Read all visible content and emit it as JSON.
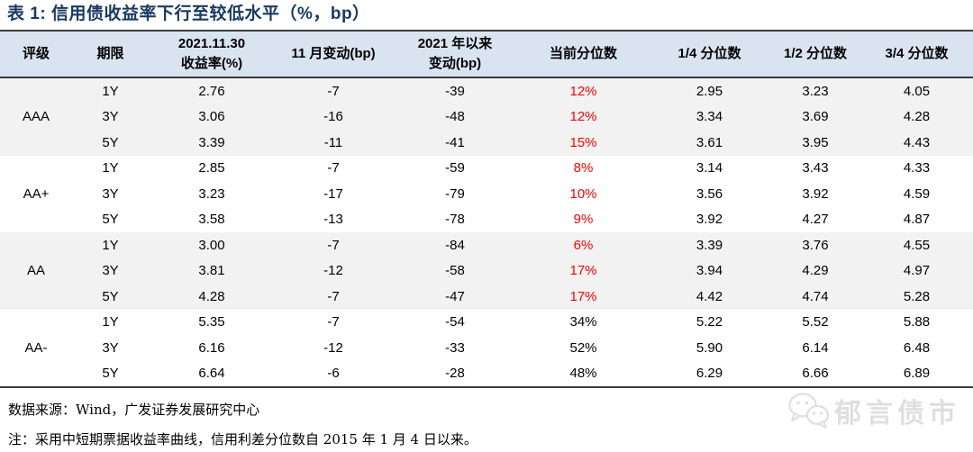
{
  "page": {
    "title": "表 1: 信用债收益率下行至较低水平（%，bp）"
  },
  "colors": {
    "title_navy": "#1A3A63",
    "header_bg": "#DAE3F0",
    "shaded_row_bg": "#F2F2F2",
    "percentile_red": "#FF0000",
    "rule_dark": "#3B3B3B",
    "watermark_gray": "#DFDFDF"
  },
  "table": {
    "columns": [
      {
        "label": "评级"
      },
      {
        "label": "期限"
      },
      {
        "label": "2021.11.30\n收益率(%)"
      },
      {
        "label": "11 月变动(bp)"
      },
      {
        "label": "2021 年以来\n变动(bp)"
      },
      {
        "label": "当前分位数"
      },
      {
        "label": "1/4 分位数"
      },
      {
        "label": "1/2 分位数"
      },
      {
        "label": "3/4 分位数"
      }
    ],
    "groups": [
      {
        "rating": "AAA",
        "shaded": true,
        "percentile_red": true,
        "rows": [
          {
            "term": "1Y",
            "yield": "2.76",
            "nov_change": "-7",
            "ytd_change": "-39",
            "current_pct": "12%",
            "q1": "2.95",
            "q2": "3.23",
            "q3": "4.05"
          },
          {
            "term": "3Y",
            "yield": "3.06",
            "nov_change": "-16",
            "ytd_change": "-48",
            "current_pct": "12%",
            "q1": "3.34",
            "q2": "3.69",
            "q3": "4.28"
          },
          {
            "term": "5Y",
            "yield": "3.39",
            "nov_change": "-11",
            "ytd_change": "-41",
            "current_pct": "15%",
            "q1": "3.61",
            "q2": "3.95",
            "q3": "4.43"
          }
        ]
      },
      {
        "rating": "AA+",
        "shaded": false,
        "percentile_red": true,
        "rows": [
          {
            "term": "1Y",
            "yield": "2.85",
            "nov_change": "-7",
            "ytd_change": "-59",
            "current_pct": "8%",
            "q1": "3.14",
            "q2": "3.43",
            "q3": "4.33"
          },
          {
            "term": "3Y",
            "yield": "3.23",
            "nov_change": "-17",
            "ytd_change": "-79",
            "current_pct": "10%",
            "q1": "3.56",
            "q2": "3.92",
            "q3": "4.59"
          },
          {
            "term": "5Y",
            "yield": "3.58",
            "nov_change": "-13",
            "ytd_change": "-78",
            "current_pct": "9%",
            "q1": "3.92",
            "q2": "4.27",
            "q3": "4.87"
          }
        ]
      },
      {
        "rating": "AA",
        "shaded": true,
        "percentile_red": true,
        "rows": [
          {
            "term": "1Y",
            "yield": "3.00",
            "nov_change": "-7",
            "ytd_change": "-84",
            "current_pct": "6%",
            "q1": "3.39",
            "q2": "3.76",
            "q3": "4.55"
          },
          {
            "term": "3Y",
            "yield": "3.81",
            "nov_change": "-12",
            "ytd_change": "-58",
            "current_pct": "17%",
            "q1": "3.94",
            "q2": "4.29",
            "q3": "4.97"
          },
          {
            "term": "5Y",
            "yield": "4.28",
            "nov_change": "-7",
            "ytd_change": "-47",
            "current_pct": "17%",
            "q1": "4.42",
            "q2": "4.74",
            "q3": "5.28"
          }
        ]
      },
      {
        "rating": "AA-",
        "shaded": false,
        "percentile_red": false,
        "rows": [
          {
            "term": "1Y",
            "yield": "5.35",
            "nov_change": "-7",
            "ytd_change": "-54",
            "current_pct": "34%",
            "q1": "5.22",
            "q2": "5.52",
            "q3": "5.88"
          },
          {
            "term": "3Y",
            "yield": "6.16",
            "nov_change": "-12",
            "ytd_change": "-33",
            "current_pct": "52%",
            "q1": "5.90",
            "q2": "6.14",
            "q3": "6.48"
          },
          {
            "term": "5Y",
            "yield": "6.64",
            "nov_change": "-6",
            "ytd_change": "-28",
            "current_pct": "48%",
            "q1": "6.29",
            "q2": "6.66",
            "q3": "6.89"
          }
        ]
      }
    ]
  },
  "footer": {
    "source": "数据来源：Wind，广发证券发展研究中心",
    "note": "注：采用中短期票据收益率曲线，信用利差分位数自 2015 年 1 月 4 日以来。"
  },
  "watermark": {
    "label": "郁言债市",
    "icon": "wechat-icon"
  }
}
